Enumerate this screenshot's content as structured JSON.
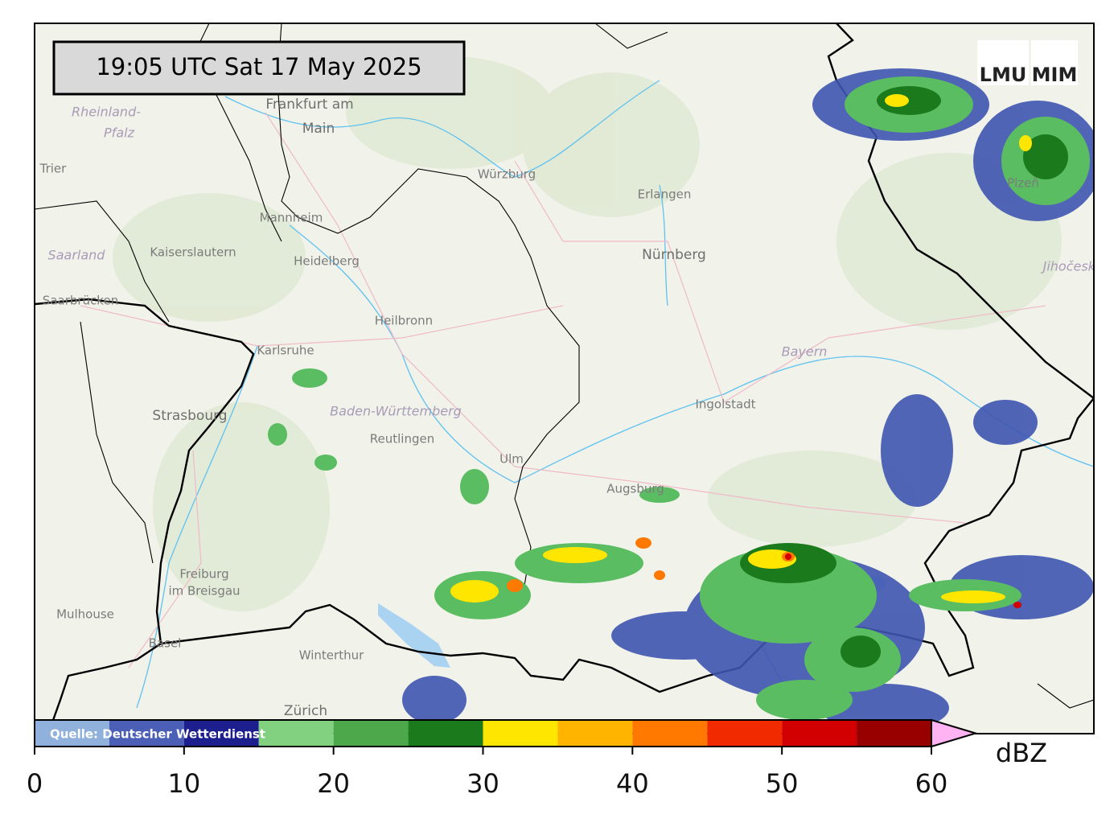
{
  "timestamp": "19:05 UTC  Sat 17 May 2025",
  "logo": [
    "LMU",
    "MIM"
  ],
  "source": "Quelle: Deutscher Wetterdienst",
  "places": [
    {
      "label": "Frankfurt am",
      "style": "place"
    },
    {
      "label": "Main",
      "style": "place"
    },
    {
      "label": "Würzburg",
      "style": "place-small"
    },
    {
      "label": "Erlangen",
      "style": "place-small"
    },
    {
      "label": "Nürnberg",
      "style": "place"
    },
    {
      "label": "Mannheim",
      "style": "place-small"
    },
    {
      "label": "Kaiserslautern",
      "style": "place-small"
    },
    {
      "label": "Heidelberg",
      "style": "place-small"
    },
    {
      "label": "Rheinland-",
      "style": "region"
    },
    {
      "label": "Pfalz",
      "style": "region"
    },
    {
      "label": "Saarland",
      "style": "region"
    },
    {
      "label": "Trier",
      "style": "place-small"
    },
    {
      "label": "Saarbrücken",
      "style": "place-small"
    },
    {
      "label": "Heilbronn",
      "style": "place-small"
    },
    {
      "label": "Karlsruhe",
      "style": "place-small"
    },
    {
      "label": "Strasbourg",
      "style": "place"
    },
    {
      "label": "Baden-Württemberg",
      "style": "region"
    },
    {
      "label": "Reutlingen",
      "style": "place-small"
    },
    {
      "label": "Ulm",
      "style": "place-small"
    },
    {
      "label": "Ingolstadt",
      "style": "place-small"
    },
    {
      "label": "Bayern",
      "style": "region"
    },
    {
      "label": "Augsburg",
      "style": "place-small"
    },
    {
      "label": "Freiburg",
      "style": "place-small"
    },
    {
      "label": "im Breisgau",
      "style": "place-small"
    },
    {
      "label": "Mulhouse",
      "style": "place-small"
    },
    {
      "label": "Basel",
      "style": "place-small"
    },
    {
      "label": "Winterthur",
      "style": "place-small"
    },
    {
      "label": "Zürich",
      "style": "place"
    },
    {
      "label": "Plzeň",
      "style": "place-small"
    },
    {
      "label": "Jihočeský",
      "style": "region"
    }
  ],
  "colorbar": {
    "unit": "dBZ",
    "lim": [
      0,
      60
    ],
    "ticks": [
      0,
      10,
      20,
      30,
      40,
      50,
      60
    ],
    "bounds": [
      0,
      5,
      10,
      15,
      20,
      25,
      30,
      35,
      40,
      45,
      50,
      55,
      60
    ],
    "colors": [
      "#8fb1dc",
      "#4b5fb6",
      "#1d1f8e",
      "#82d181",
      "#4ca84a",
      "#1b7a1b",
      "#ffe600",
      "#ffb400",
      "#ff7800",
      "#f22a00",
      "#d20000",
      "#980000"
    ],
    "extend_color": "#ffb3f2"
  }
}
